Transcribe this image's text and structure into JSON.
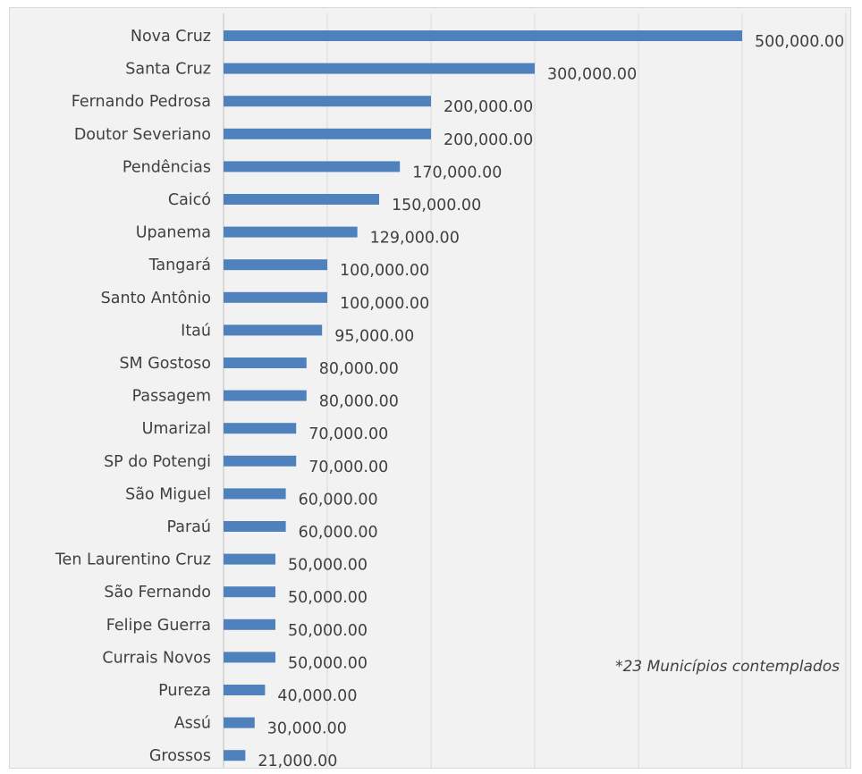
{
  "chart_data": {
    "type": "bar",
    "orientation": "horizontal",
    "categories": [
      "Nova Cruz",
      "Santa Cruz",
      "Fernando Pedrosa",
      "Doutor Severiano",
      "Pendências",
      "Caicó",
      "Upanema",
      "Tangará",
      "Santo Antônio",
      "Itaú",
      "SM Gostoso",
      "Passagem",
      "Umarizal",
      "SP do Potengi",
      "São Miguel",
      "Paraú",
      "Ten Laurentino Cruz",
      "São Fernando",
      "Felipe Guerra",
      "Currais Novos",
      "Pureza",
      "Assú",
      "Grossos"
    ],
    "values": [
      500000,
      300000,
      200000,
      200000,
      170000,
      150000,
      129000,
      100000,
      100000,
      95000,
      80000,
      80000,
      70000,
      70000,
      60000,
      60000,
      50000,
      50000,
      50000,
      50000,
      40000,
      30000,
      21000
    ],
    "value_labels": [
      "500,000.00",
      "300,000.00",
      "200,000.00",
      "200,000.00",
      "170,000.00",
      "150,000.00",
      "129,000.00",
      "100,000.00",
      "100,000.00",
      "95,000.00",
      "80,000.00",
      "80,000.00",
      "70,000.00",
      "70,000.00",
      "60,000.00",
      "60,000.00",
      "50,000.00",
      "50,000.00",
      "50,000.00",
      "50,000.00",
      "40,000.00",
      "30,000.00",
      "21,000.00"
    ],
    "xlim": [
      0,
      600000
    ],
    "grid": true,
    "bar_color": "#4f81bd",
    "annotation": "*23 Municípios contemplados"
  }
}
